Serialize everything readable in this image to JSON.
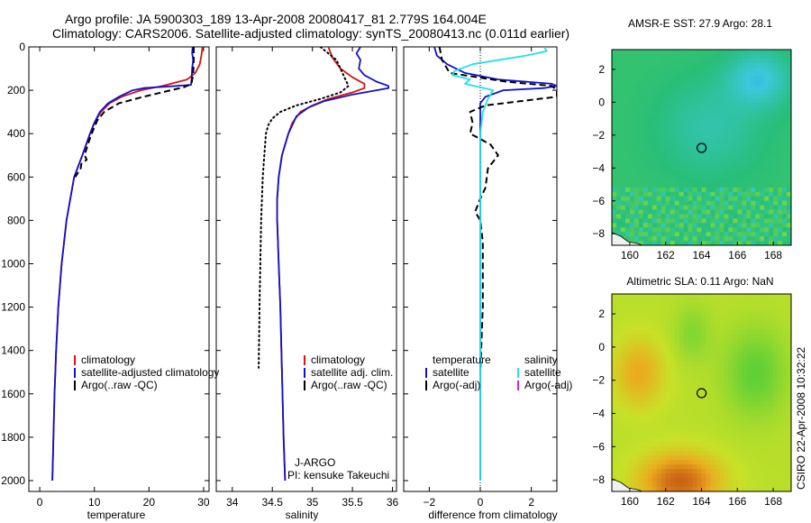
{
  "figure": {
    "title_line1": "Argo profile: JA 5900303_189 13-Apr-2008 20080417_81 2.779S 164.004E",
    "title_line2": "Climatology: CARS2006. Satellite-adjusted climatology: synTS_20080413.nc (0.011d earlier)",
    "side_label": "CSIRO 22-Apr-2008 10:32:22"
  },
  "colors": {
    "climatology": "#dd1111",
    "satellite": "#1111cc",
    "argo": "#000000",
    "salinity_satellite": "#22e0e8",
    "salinity_argo": "#e020e0"
  },
  "chart_data": [
    {
      "type": "line",
      "title": "",
      "xlabel": "temperature",
      "ylabel": "",
      "xlim": [
        -2,
        31
      ],
      "ylim": [
        2050,
        0
      ],
      "xticks": [
        0,
        10,
        20,
        30
      ],
      "yticks": [
        0,
        200,
        400,
        600,
        800,
        1000,
        1200,
        1400,
        1600,
        1800,
        2000
      ],
      "legend": [
        "climatology",
        "satellite-adjusted climatology",
        "Argo(..raw -QC)"
      ],
      "legend_position": "lower-right",
      "series": [
        {
          "name": "climatology",
          "style": "solid",
          "color_key": "climatology",
          "depth": [
            0,
            40,
            80,
            120,
            150,
            180,
            200,
            230,
            260,
            300,
            350,
            400,
            500,
            600,
            800,
            1000,
            1200,
            1400,
            1600,
            1800,
            2000
          ],
          "values": [
            29.8,
            29.6,
            29.3,
            28.5,
            27.0,
            22.5,
            18.5,
            15.0,
            12.8,
            11.2,
            10.0,
            9.2,
            7.8,
            6.3,
            4.9,
            4.0,
            3.4,
            3.0,
            2.7,
            2.5,
            2.3
          ]
        },
        {
          "name": "satellite-adjusted climatology",
          "style": "solid",
          "color_key": "satellite",
          "depth": [
            0,
            30,
            60,
            100,
            150,
            175,
            180,
            190,
            200,
            230,
            260,
            300,
            350,
            400,
            500,
            600,
            800,
            1000,
            1200,
            1400,
            1600,
            1800,
            2000
          ],
          "values": [
            28.0,
            27.9,
            28.1,
            27.9,
            27.8,
            27.7,
            25.0,
            19.0,
            17.0,
            14.5,
            12.5,
            11.0,
            10.0,
            9.2,
            7.8,
            6.3,
            4.9,
            4.0,
            3.4,
            3.0,
            2.7,
            2.5,
            2.3
          ]
        },
        {
          "name": "Argo(..raw -QC)",
          "style": "dashed",
          "color_key": "argo",
          "depth": [
            0,
            60,
            120,
            170,
            185,
            200,
            230,
            260,
            300,
            340,
            400,
            450,
            500,
            520,
            540,
            560,
            600
          ],
          "values": [
            28.2,
            28.2,
            28.1,
            27.8,
            26.5,
            24.0,
            19.0,
            14.5,
            11.8,
            10.5,
            9.5,
            8.8,
            8.2,
            8.6,
            7.6,
            7.5,
            6.5
          ]
        }
      ]
    },
    {
      "type": "line",
      "title": "",
      "xlabel": "salinity",
      "ylabel": "",
      "xlim": [
        33.8,
        36.05
      ],
      "ylim": [
        2050,
        0
      ],
      "xticks": [
        34,
        34.5,
        35,
        35.5,
        36
      ],
      "yticks": [
        0,
        200,
        400,
        600,
        800,
        1000,
        1200,
        1400,
        1600,
        1800,
        2000
      ],
      "legend": [
        "climatology",
        "satellite adj. clim.",
        "Argo(..raw -QC)"
      ],
      "legend_position": "lower-right",
      "annotation_lines": [
        "J-ARGO",
        "PI: kensuke Takeuchi"
      ],
      "series": [
        {
          "name": "climatology",
          "style": "solid",
          "color_key": "climatology",
          "depth": [
            0,
            50,
            100,
            140,
            170,
            190,
            210,
            240,
            270,
            300,
            350,
            400,
            500,
            600,
            700,
            800,
            1000,
            1200,
            1500,
            1800,
            2000
          ],
          "values": [
            35.2,
            35.25,
            35.35,
            35.5,
            35.65,
            35.65,
            35.5,
            35.2,
            35.0,
            34.85,
            34.75,
            34.7,
            34.62,
            34.58,
            34.56,
            34.56,
            34.58,
            34.6,
            34.62,
            34.64,
            34.66
          ]
        },
        {
          "name": "satellite adj. clim.",
          "style": "solid",
          "color_key": "satellite",
          "depth": [
            0,
            30,
            60,
            100,
            130,
            160,
            180,
            190,
            200,
            220,
            250,
            280,
            320,
            400,
            500,
            600,
            700,
            800,
            1000,
            1200,
            1500,
            1800,
            2000
          ],
          "values": [
            35.6,
            35.55,
            35.6,
            35.58,
            35.65,
            35.8,
            35.95,
            35.95,
            35.8,
            35.5,
            35.15,
            34.95,
            34.8,
            34.7,
            34.62,
            34.58,
            34.56,
            34.56,
            34.58,
            34.6,
            34.62,
            34.64,
            34.66
          ]
        },
        {
          "name": "Argo(..raw -QC)",
          "style": "dotted",
          "color_key": "argo",
          "depth": [
            0,
            30,
            60,
            100,
            140,
            180,
            210,
            240,
            270,
            300,
            330,
            360,
            400,
            500,
            600,
            800,
            1000,
            1200,
            1480
          ],
          "values": [
            35.1,
            35.2,
            35.3,
            35.35,
            35.4,
            35.45,
            35.35,
            35.1,
            34.8,
            34.6,
            34.5,
            34.45,
            34.42,
            34.4,
            34.38,
            34.36,
            34.35,
            34.34,
            34.33
          ]
        }
      ]
    },
    {
      "type": "line",
      "title": "",
      "xlabel": "difference from climatology",
      "ylabel": "",
      "xlim": [
        -3,
        3
      ],
      "ylim": [
        2050,
        0
      ],
      "xticks": [
        -2,
        0,
        2
      ],
      "yticks": [
        0,
        200,
        400,
        600,
        800,
        1000,
        1200,
        1400,
        1600,
        1800,
        2000
      ],
      "legend_groups": [
        {
          "header": "temperature",
          "entries": [
            "satellite",
            "Argo(-adj)"
          ]
        },
        {
          "header": "salinity",
          "entries": [
            "satellite",
            "Argo(-adj)"
          ]
        }
      ],
      "legend_position": "lower-right",
      "series": [
        {
          "name": "temperature satellite",
          "style": "solid",
          "color_key": "satellite",
          "depth": [
            0,
            40,
            80,
            120,
            150,
            170,
            180,
            190,
            200,
            230,
            260,
            300,
            400,
            600,
            800,
            1000,
            1200,
            1500,
            1800,
            2000
          ],
          "values": [
            -1.8,
            -1.7,
            -1.3,
            -0.6,
            0.7,
            2.8,
            3.0,
            2.5,
            0.9,
            0.2,
            0.0,
            0.0,
            0.0,
            0.0,
            0.0,
            0.0,
            0.0,
            0.0,
            0.0,
            0.0
          ]
        },
        {
          "name": "temperature Argo(-adj)",
          "style": "dashed",
          "color_key": "argo",
          "depth": [
            0,
            60,
            120,
            160,
            180,
            200,
            230,
            270,
            300,
            350,
            400,
            450,
            500,
            560,
            650,
            700,
            760,
            800,
            900,
            1000,
            1200,
            1500
          ],
          "values": [
            -1.6,
            -1.5,
            -1.2,
            1.0,
            2.8,
            3.0,
            3.0,
            0.2,
            -0.4,
            -0.3,
            -0.4,
            0.4,
            0.7,
            0.3,
            0.2,
            0.0,
            -0.2,
            0.0,
            0.1,
            0.1,
            0.1,
            0.0
          ]
        },
        {
          "name": "salinity satellite",
          "style": "solid",
          "color_key": "salinity_satellite",
          "depth": [
            0,
            20,
            40,
            80,
            110,
            130,
            150,
            170,
            200,
            240,
            300,
            400,
            600,
            800,
            1000,
            1500,
            2000
          ],
          "values": [
            2.5,
            2.6,
            1.8,
            -0.3,
            -1.0,
            -1.1,
            -0.4,
            -0.6,
            0.5,
            0.3,
            0.1,
            0.0,
            0.0,
            0.0,
            0.0,
            0.0,
            0.0
          ]
        }
      ]
    },
    {
      "type": "heatmap",
      "title": "AMSR-E SST: 27.9 Argo: 28.1",
      "xlim": [
        159,
        169
      ],
      "ylim": [
        -8.7,
        3.2
      ],
      "xticks": [
        160,
        162,
        164,
        166,
        168
      ],
      "yticks": [
        2,
        0,
        -2,
        -4,
        -6,
        -8
      ],
      "marker": {
        "lon": 164.004,
        "lat": -2.779
      }
    },
    {
      "type": "heatmap",
      "title": "Altimetric SLA: 0.11 Argo: NaN",
      "xlim": [
        159,
        169
      ],
      "ylim": [
        -8.7,
        3.2
      ],
      "xticks": [
        160,
        162,
        164,
        166,
        168
      ],
      "yticks": [
        2,
        0,
        -2,
        -4,
        -6,
        -8
      ],
      "marker": {
        "lon": 164.004,
        "lat": -2.779
      }
    }
  ]
}
